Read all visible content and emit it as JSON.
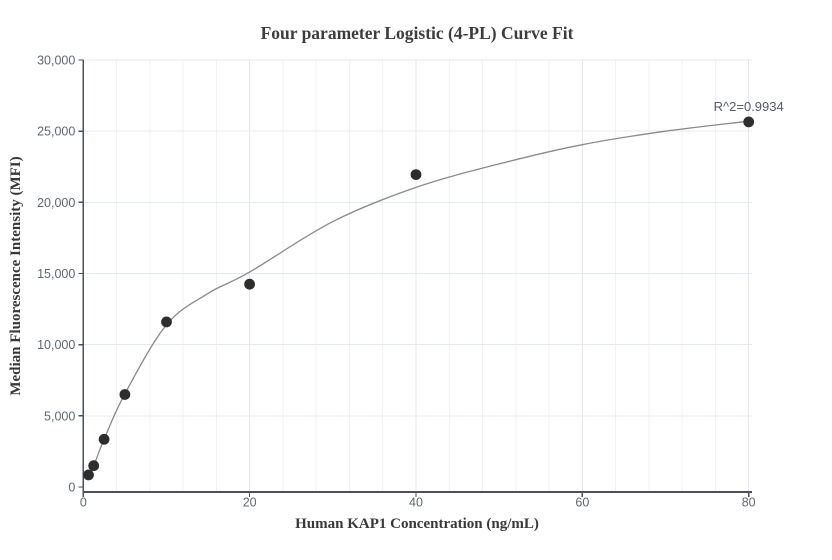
{
  "chart_data": {
    "type": "scatter",
    "title": "Four parameter Logistic (4-PL) Curve Fit",
    "xlabel": "Human KAP1 Concentration (ng/mL)",
    "ylabel": "Median Fluorescence Intensity (MFI)",
    "annotation": {
      "text": "R^2=0.9934",
      "anchor_x": 80,
      "anchor_y": 25650
    },
    "r_squared": 0.9934,
    "xlim": [
      0,
      80.4
    ],
    "ylim": [
      -350,
      30000
    ],
    "x_ticks": [
      0,
      20,
      40,
      60,
      80
    ],
    "y_ticks": [
      0,
      5000,
      10000,
      15000,
      20000,
      25000,
      30000
    ],
    "x_minor_step": 4,
    "grid": true,
    "legend": "none",
    "series": [
      {
        "name": "standard-points",
        "kind": "points",
        "x": [
          0.625,
          1.25,
          2.5,
          5,
          10,
          20,
          40,
          80
        ],
        "y": [
          850,
          1500,
          3350,
          6500,
          11600,
          14250,
          21950,
          25650
        ]
      },
      {
        "name": "4pl-fit-curve",
        "kind": "curve",
        "x": [
          0.625,
          1.25,
          2.5,
          5,
          10,
          15,
          20,
          30,
          40,
          50,
          60,
          70,
          80
        ],
        "y": [
          800,
          1500,
          3350,
          6550,
          11400,
          13600,
          15100,
          18650,
          21050,
          22700,
          24050,
          25000,
          25700
        ]
      }
    ],
    "colors": {
      "background": "#ffffff",
      "marker": "#2e2e2e",
      "curve": "#8a8a8a",
      "grid_minor": "#eef2f8",
      "grid_major": "#e2e8f2",
      "grid_horizontal": "#e4eaf3",
      "axis": "#4a515c",
      "tick_label": "#5f6671",
      "title": "#3d3d3d",
      "axis_label": "#383838",
      "annotation": "#555b64"
    }
  }
}
